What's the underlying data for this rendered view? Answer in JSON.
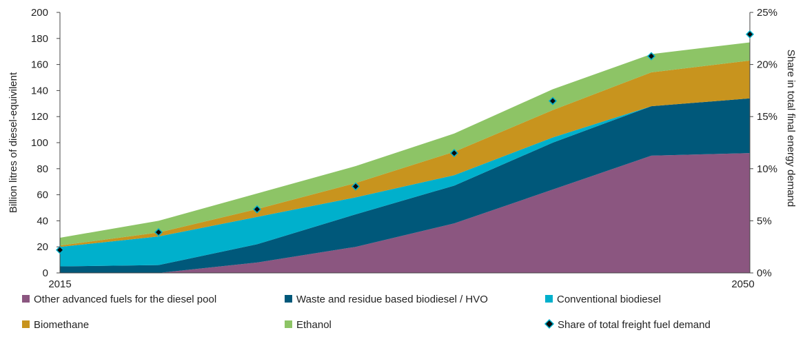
{
  "chart_data": {
    "type": "area",
    "stacked": true,
    "x": [
      2015,
      2020,
      2025,
      2030,
      2035,
      2040,
      2045,
      2050
    ],
    "x_tick_labels": [
      "2015",
      "2050"
    ],
    "series": [
      {
        "name": "Other advanced fuels for the diesel pool",
        "color": "#8B5680",
        "values": [
          0,
          0,
          8,
          20,
          38,
          64,
          90,
          92
        ]
      },
      {
        "name": "Waste and residue based biodiesel / HVO",
        "color": "#00587A",
        "values": [
          5,
          6,
          14,
          25,
          29,
          36,
          38,
          42
        ]
      },
      {
        "name": "Conventional biodiesel",
        "color": "#00B0CC",
        "values": [
          15,
          22,
          21,
          13,
          8,
          4,
          0,
          0
        ]
      },
      {
        "name": "Biomethane",
        "color": "#C8941E",
        "values": [
          1,
          3,
          6,
          11,
          18,
          21,
          26,
          29
        ]
      },
      {
        "name": "Ethanol",
        "color": "#8DC466",
        "values": [
          6,
          9,
          12,
          13,
          14,
          16,
          14,
          14
        ]
      }
    ],
    "share": {
      "name": "Share of total freight fuel demand",
      "values": [
        2.2,
        3.9,
        6.1,
        8.3,
        11.5,
        16.5,
        20.8,
        22.9
      ]
    },
    "ylabel_left": "Billion litres of diesel-equivilent",
    "ylabel_right": "Share in total final energy demand",
    "ylim_left": [
      0,
      200
    ],
    "yticks_left": [
      "0",
      "20",
      "40",
      "60",
      "80",
      "100",
      "120",
      "140",
      "160",
      "180",
      "200"
    ],
    "ylim_right": [
      0,
      25
    ],
    "yticks_right": [
      "0%",
      "5%",
      "10%",
      "15%",
      "20%",
      "25%"
    ],
    "legend_position": "bottom",
    "grid": false
  }
}
